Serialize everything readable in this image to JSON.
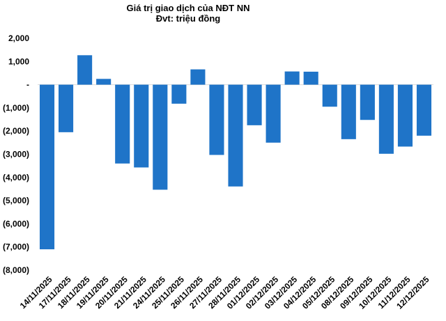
{
  "chart_data": {
    "type": "bar",
    "title": "Giá trị giao dịch của NĐT NN",
    "subtitle": "Đvt: triệu đồng",
    "categories": [
      "14/11/2025",
      "17/11/2025",
      "18/11/2025",
      "19/11/2025",
      "20/11/2025",
      "21/11/2025",
      "24/11/2025",
      "25/11/2025",
      "26/11/2025",
      "27/11/2025",
      "28/11/2025",
      "01/12/2025",
      "02/12/2025",
      "03/12/2025",
      "04/12/2025",
      "05/12/2025",
      "08/12/2025",
      "09/12/2025",
      "10/12/2025",
      "11/12/2025",
      "12/12/2025"
    ],
    "values": [
      -7100,
      -2050,
      1270,
      250,
      -3400,
      -3570,
      -4530,
      -820,
      660,
      -3030,
      -4390,
      -1750,
      -2500,
      570,
      560,
      -950,
      -2350,
      -1520,
      -2980,
      -2670,
      -2200
    ],
    "ylim": [
      -8000,
      2000
    ],
    "yticks": [
      2000,
      1000,
      0,
      -1000,
      -2000,
      -3000,
      -4000,
      -5000,
      -6000,
      -7000,
      -8000
    ],
    "ytick_labels": [
      "2,000",
      "1,000",
      "-",
      "(1,000)",
      "(2,000)",
      "(3,000)",
      "(4,000)",
      "(5,000)",
      "(6,000)",
      "(7,000)",
      "(8,000)"
    ],
    "bar_color": "#1F74C8",
    "grid": false,
    "legend": "none"
  }
}
